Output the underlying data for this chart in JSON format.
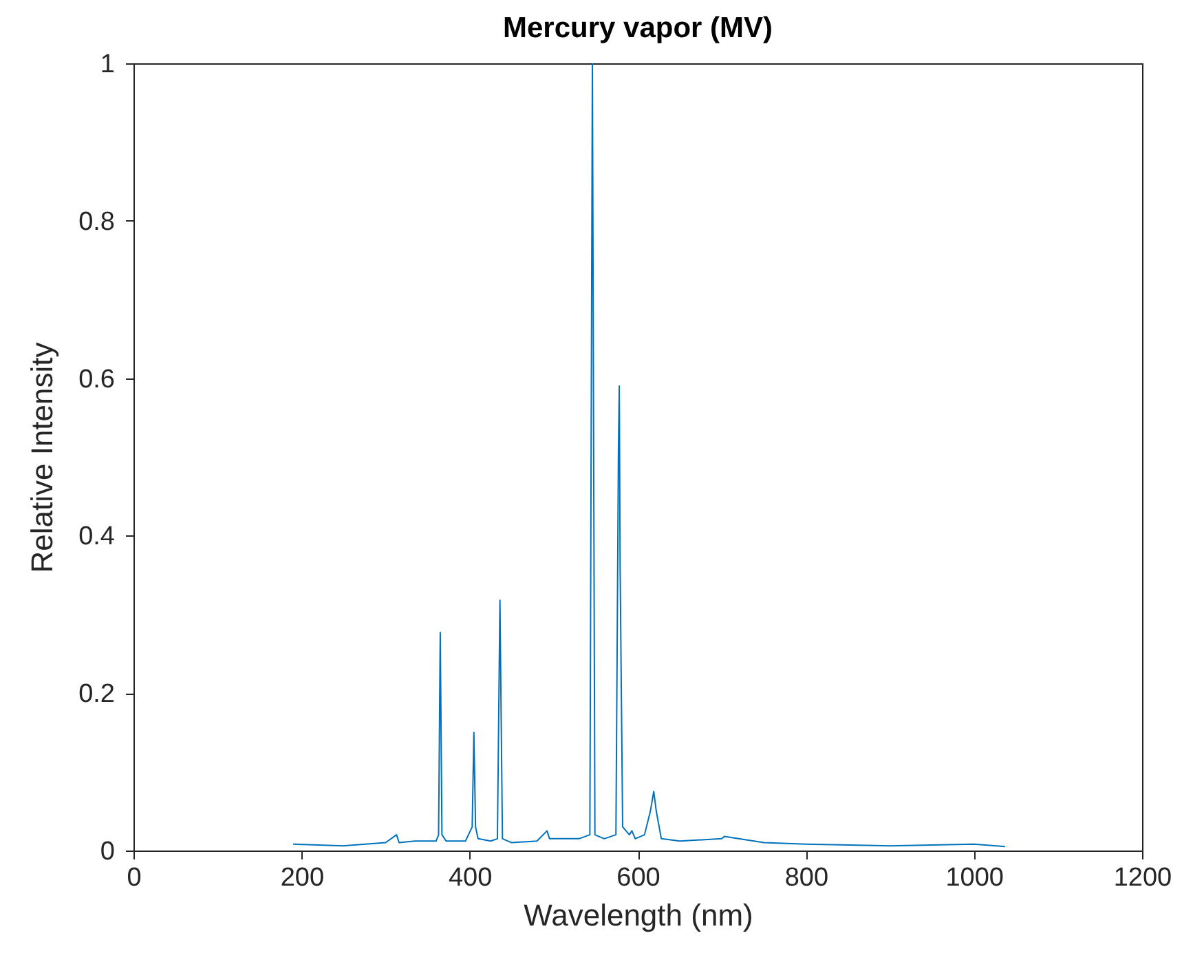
{
  "chart_data": {
    "type": "line",
    "title": "Mercury vapor (MV)",
    "xlabel": "Wavelength (nm)",
    "ylabel": "Relative Intensity",
    "xlim": [
      0,
      1200
    ],
    "xticks": [
      0,
      200,
      400,
      600,
      800,
      1000,
      1200
    ],
    "ylim": [
      0,
      1
    ],
    "yticks": [
      0,
      0.2,
      0.4,
      0.6,
      0.8,
      1
    ],
    "grid": false,
    "series": [
      {
        "color": "#0072bd",
        "x": [
          190,
          250,
          300,
          313,
          316,
          335,
          360,
          363,
          365,
          367,
          372,
          395,
          403,
          405,
          407,
          410,
          425,
          433,
          436,
          439,
          450,
          480,
          492,
          495,
          530,
          543,
          546,
          549,
          560,
          574,
          577,
          578,
          579,
          582,
          590,
          593,
          597,
          608,
          615,
          619,
          622,
          628,
          650,
          700,
          703,
          750,
          800,
          900,
          1000,
          1037
        ],
        "values": [
          0.008,
          0.006,
          0.01,
          0.02,
          0.01,
          0.012,
          0.012,
          0.02,
          0.277,
          0.02,
          0.012,
          0.012,
          0.03,
          0.15,
          0.03,
          0.015,
          0.012,
          0.015,
          0.318,
          0.015,
          0.01,
          0.012,
          0.025,
          0.015,
          0.015,
          0.02,
          1.0,
          0.02,
          0.015,
          0.02,
          0.51,
          0.59,
          0.36,
          0.03,
          0.02,
          0.025,
          0.015,
          0.02,
          0.05,
          0.075,
          0.05,
          0.015,
          0.012,
          0.015,
          0.018,
          0.01,
          0.008,
          0.006,
          0.008,
          0.005
        ]
      }
    ]
  }
}
